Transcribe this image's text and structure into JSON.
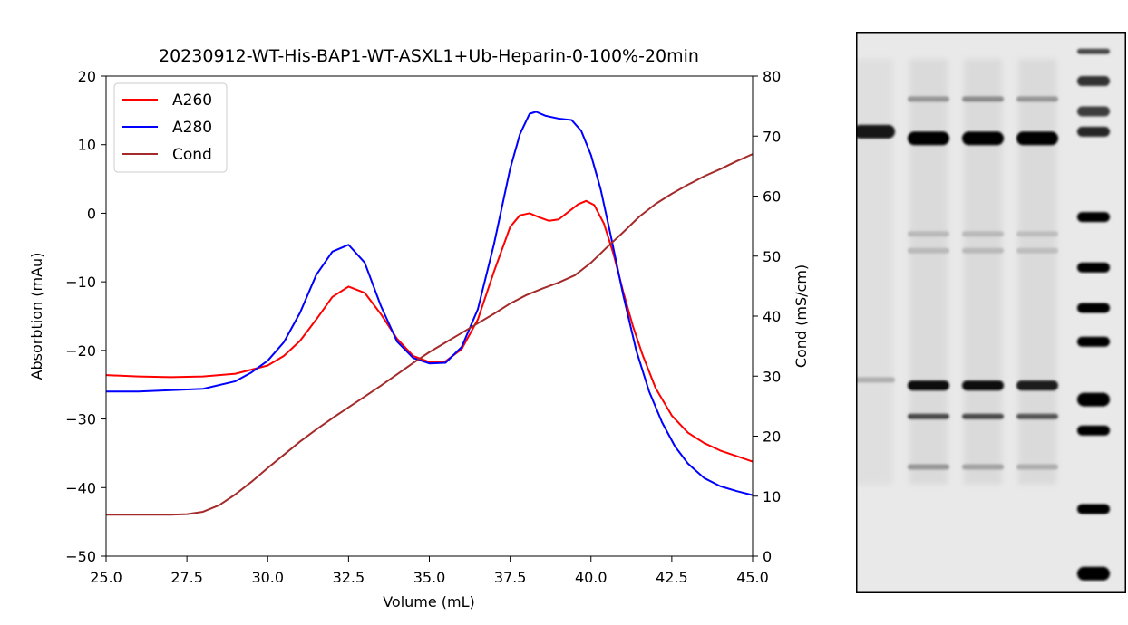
{
  "chart_data": {
    "type": "line",
    "title": "20230912-WT-His-BAP1-WT-ASXL1+Ub-Heparin-0-100%-20min",
    "xlabel": "Volume (mL)",
    "ylabel": "Absorbtion (mAu)",
    "y2label": "Cond (mS/cm)",
    "xlim": [
      25,
      45
    ],
    "ylim": [
      -50,
      20
    ],
    "y2lim": [
      0,
      80
    ],
    "xticks": [
      "25.0",
      "27.5",
      "30.0",
      "32.5",
      "35.0",
      "37.5",
      "40.0",
      "42.5",
      "45.0"
    ],
    "yticks": [
      "−50",
      "−40",
      "−30",
      "−20",
      "−10",
      "0",
      "10",
      "20"
    ],
    "y2ticks": [
      "0",
      "10",
      "20",
      "30",
      "40",
      "50",
      "60",
      "70",
      "80"
    ],
    "legend_position": "upper-left",
    "grid": false,
    "series": [
      {
        "name": "A260",
        "color": "#ff0000",
        "axis": "left",
        "x": [
          25,
          26,
          27,
          28,
          29,
          30,
          30.5,
          31,
          31.5,
          32,
          32.5,
          33,
          33.5,
          34,
          34.5,
          35,
          35.5,
          36,
          36.5,
          37,
          37.5,
          37.8,
          38.1,
          38.4,
          38.7,
          39,
          39.3,
          39.6,
          39.85,
          40.1,
          40.4,
          40.7,
          41,
          41.3,
          41.6,
          42,
          42.5,
          43,
          43.5,
          44,
          44.5,
          45
        ],
        "y": [
          -23.6,
          -23.8,
          -23.9,
          -23.8,
          -23.4,
          -22.2,
          -20.8,
          -18.6,
          -15.5,
          -12.2,
          -10.7,
          -11.6,
          -14.7,
          -18.3,
          -20.8,
          -21.7,
          -21.6,
          -19.8,
          -15.5,
          -8.5,
          -2.0,
          -0.3,
          0.0,
          -0.6,
          -1.1,
          -0.9,
          0.2,
          1.3,
          1.8,
          1.2,
          -1.5,
          -6.0,
          -11.5,
          -16.5,
          -20.7,
          -25.5,
          -29.5,
          -32.0,
          -33.5,
          -34.6,
          -35.4,
          -36.2
        ]
      },
      {
        "name": "A280",
        "color": "#0000ff",
        "axis": "left",
        "x": [
          25,
          26,
          27,
          28,
          29,
          29.5,
          30,
          30.5,
          31,
          31.5,
          32,
          32.5,
          33,
          33.5,
          34,
          34.5,
          35,
          35.5,
          36,
          36.5,
          37,
          37.5,
          37.8,
          38.1,
          38.3,
          38.6,
          39,
          39.4,
          39.7,
          40,
          40.3,
          40.6,
          41,
          41.4,
          41.8,
          42.2,
          42.6,
          43,
          43.5,
          44,
          44.5,
          45
        ],
        "y": [
          -26.0,
          -26.0,
          -25.8,
          -25.6,
          -24.5,
          -23.2,
          -21.5,
          -18.8,
          -14.5,
          -9.0,
          -5.6,
          -4.6,
          -7.2,
          -13.5,
          -18.7,
          -21.1,
          -21.9,
          -21.8,
          -19.5,
          -14.0,
          -4.5,
          6.5,
          11.5,
          14.5,
          14.8,
          14.2,
          13.8,
          13.6,
          12.0,
          8.5,
          3.5,
          -3.0,
          -12.0,
          -20.0,
          -26.0,
          -30.5,
          -34.0,
          -36.5,
          -38.6,
          -39.8,
          -40.5,
          -41.1
        ]
      },
      {
        "name": "Cond",
        "color": "#a52a2a",
        "axis": "right",
        "x": [
          25,
          26,
          27,
          27.5,
          28,
          28.5,
          29,
          29.5,
          30,
          30.5,
          31,
          31.5,
          32,
          32.5,
          33,
          33.5,
          34,
          34.5,
          35,
          35.5,
          36,
          36.5,
          37,
          37.5,
          38,
          38.5,
          39,
          39.5,
          40,
          40.5,
          41,
          41.5,
          42,
          42.5,
          43,
          43.5,
          44,
          44.5,
          45
        ],
        "y": [
          6.9,
          6.9,
          6.9,
          7.0,
          7.4,
          8.5,
          10.3,
          12.4,
          14.7,
          16.9,
          19.1,
          21.1,
          23.0,
          24.8,
          26.6,
          28.4,
          30.3,
          32.2,
          34.0,
          35.6,
          37.2,
          38.8,
          40.4,
          42.1,
          43.5,
          44.6,
          45.6,
          46.8,
          48.9,
          51.5,
          54.0,
          56.6,
          58.7,
          60.4,
          61.9,
          63.3,
          64.5,
          65.8,
          67.0
        ]
      }
    ]
  },
  "gel": {
    "lanes": [
      {
        "bands": [
          {
            "position": 0.178,
            "intensity": 0.92,
            "weight": "thick"
          },
          {
            "position": 0.62,
            "intensity": 0.25,
            "weight": "thin"
          }
        ]
      },
      {
        "bands": [
          {
            "position": 0.12,
            "intensity": 0.35,
            "weight": "thin"
          },
          {
            "position": 0.19,
            "intensity": 1.0,
            "weight": "thick"
          },
          {
            "position": 0.36,
            "intensity": 0.2,
            "weight": "thin"
          },
          {
            "position": 0.39,
            "intensity": 0.2,
            "weight": "thin"
          },
          {
            "position": 0.63,
            "intensity": 0.95,
            "weight": "medium"
          },
          {
            "position": 0.685,
            "intensity": 0.7,
            "weight": "thin"
          },
          {
            "position": 0.775,
            "intensity": 0.35,
            "weight": "thin"
          }
        ]
      },
      {
        "bands": [
          {
            "position": 0.12,
            "intensity": 0.4,
            "weight": "thin"
          },
          {
            "position": 0.19,
            "intensity": 1.0,
            "weight": "thick"
          },
          {
            "position": 0.36,
            "intensity": 0.2,
            "weight": "thin"
          },
          {
            "position": 0.39,
            "intensity": 0.2,
            "weight": "thin"
          },
          {
            "position": 0.63,
            "intensity": 0.95,
            "weight": "medium"
          },
          {
            "position": 0.685,
            "intensity": 0.7,
            "weight": "thin"
          },
          {
            "position": 0.775,
            "intensity": 0.3,
            "weight": "thin"
          }
        ]
      },
      {
        "bands": [
          {
            "position": 0.12,
            "intensity": 0.35,
            "weight": "thin"
          },
          {
            "position": 0.19,
            "intensity": 1.0,
            "weight": "thick"
          },
          {
            "position": 0.36,
            "intensity": 0.18,
            "weight": "thin"
          },
          {
            "position": 0.39,
            "intensity": 0.18,
            "weight": "thin"
          },
          {
            "position": 0.63,
            "intensity": 0.9,
            "weight": "medium"
          },
          {
            "position": 0.685,
            "intensity": 0.65,
            "weight": "thin"
          },
          {
            "position": 0.775,
            "intensity": 0.25,
            "weight": "thin"
          }
        ]
      },
      {
        "ladder": true,
        "bands": [
          {
            "position": 0.035,
            "intensity": 0.7,
            "weight": "thin"
          },
          {
            "position": 0.088,
            "intensity": 0.8,
            "weight": "medium"
          },
          {
            "position": 0.142,
            "intensity": 0.75,
            "weight": "medium"
          },
          {
            "position": 0.178,
            "intensity": 0.85,
            "weight": "medium"
          },
          {
            "position": 0.33,
            "intensity": 1.0,
            "weight": "medium"
          },
          {
            "position": 0.42,
            "intensity": 1.0,
            "weight": "medium"
          },
          {
            "position": 0.492,
            "intensity": 1.0,
            "weight": "medium"
          },
          {
            "position": 0.552,
            "intensity": 1.0,
            "weight": "medium"
          },
          {
            "position": 0.655,
            "intensity": 1.0,
            "weight": "thick"
          },
          {
            "position": 0.71,
            "intensity": 1.0,
            "weight": "medium"
          },
          {
            "position": 0.85,
            "intensity": 1.0,
            "weight": "medium"
          },
          {
            "position": 0.965,
            "intensity": 1.0,
            "weight": "thick"
          }
        ]
      }
    ]
  }
}
